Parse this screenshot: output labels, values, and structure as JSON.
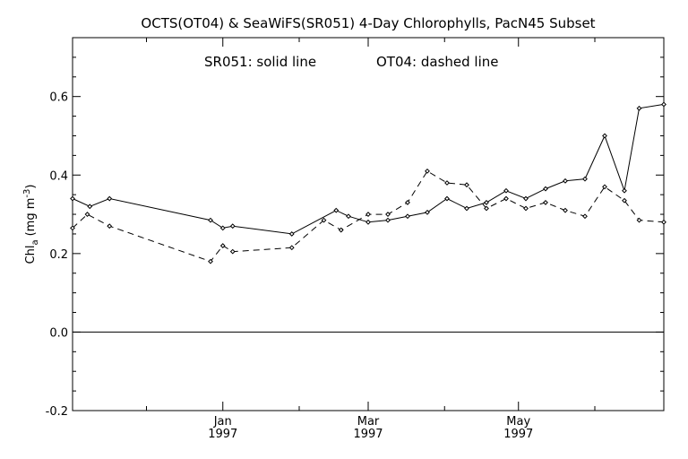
{
  "chart_data": {
    "type": "line",
    "title": "OCTS(OT04) & SeaWiFS(SR051) 4-Day Chlorophylls, PacN45 Subset",
    "annotation_left": "SR051: solid line",
    "annotation_right": "OT04: dashed line",
    "ylabel_main": "Chl",
    "ylabel_sub": "a",
    "ylabel_units": "(mg m",
    "ylabel_exp": "-3",
    "ylabel_close": ")",
    "ylim": [
      -0.2,
      0.75
    ],
    "xlim": [
      "1996-11-01",
      "1997-06-29"
    ],
    "yticks": [
      -0.2,
      0.0,
      0.2,
      0.4,
      0.6
    ],
    "ytick_labels": [
      "-0.2",
      "0.0",
      "0.2",
      "0.4",
      "0.6"
    ],
    "xticks": [
      {
        "date": "1997-01-01",
        "month": "Jan",
        "year": "1997"
      },
      {
        "date": "1997-03-01",
        "month": "Mar",
        "year": "1997"
      },
      {
        "date": "1997-05-01",
        "month": "May",
        "year": "1997"
      }
    ],
    "xticks_minor": [
      "1996-12-01",
      "1997-02-01",
      "1997-04-01",
      "1997-06-01"
    ],
    "zero_line": true,
    "grid": false,
    "series": [
      {
        "name": "SR051",
        "style": "solid",
        "x": [
          "1996-11-01",
          "1996-11-08",
          "1996-11-16",
          "1996-12-27",
          "1997-01-01",
          "1997-01-05",
          "1997-01-29",
          "1997-02-16",
          "1997-02-21",
          "1997-03-01",
          "1997-03-09",
          "1997-03-17",
          "1997-03-25",
          "1997-04-02",
          "1997-04-10",
          "1997-04-18",
          "1997-04-26",
          "1997-05-04",
          "1997-05-12",
          "1997-05-20",
          "1997-05-28",
          "1997-06-05",
          "1997-06-13",
          "1997-06-19",
          "1997-06-29"
        ],
        "values": [
          0.34,
          0.32,
          0.34,
          0.285,
          0.265,
          0.27,
          0.25,
          0.31,
          0.295,
          0.28,
          0.285,
          0.295,
          0.305,
          0.34,
          0.315,
          0.33,
          0.36,
          0.34,
          0.365,
          0.385,
          0.39,
          0.5,
          0.36,
          0.57,
          0.58
        ]
      },
      {
        "name": "OT04",
        "style": "dashed",
        "x": [
          "1996-11-01",
          "1996-11-07",
          "1996-11-16",
          "1996-12-27",
          "1997-01-01",
          "1997-01-05",
          "1997-01-29",
          "1997-02-11",
          "1997-02-18",
          "1997-03-01",
          "1997-03-09",
          "1997-03-17",
          "1997-03-25",
          "1997-04-02",
          "1997-04-10",
          "1997-04-18",
          "1997-04-26",
          "1997-05-04",
          "1997-05-12",
          "1997-05-20",
          "1997-05-28",
          "1997-06-05",
          "1997-06-13",
          "1997-06-19",
          "1997-06-29"
        ],
        "values": [
          0.265,
          0.3,
          0.27,
          0.18,
          0.22,
          0.205,
          0.215,
          0.285,
          0.26,
          0.3,
          0.3,
          0.33,
          0.41,
          0.38,
          0.375,
          0.315,
          0.34,
          0.315,
          0.33,
          0.31,
          0.295,
          0.37,
          0.335,
          0.285,
          0.28
        ]
      }
    ]
  }
}
